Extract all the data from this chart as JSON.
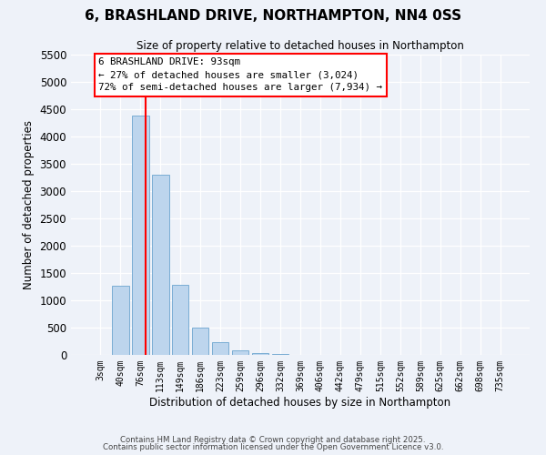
{
  "title": "6, BRASHLAND DRIVE, NORTHAMPTON, NN4 0SS",
  "subtitle": "Size of property relative to detached houses in Northampton",
  "xlabel": "Distribution of detached houses by size in Northampton",
  "ylabel": "Number of detached properties",
  "bar_labels": [
    "3sqm",
    "40sqm",
    "76sqm",
    "113sqm",
    "149sqm",
    "186sqm",
    "223sqm",
    "259sqm",
    "296sqm",
    "332sqm",
    "369sqm",
    "406sqm",
    "442sqm",
    "479sqm",
    "515sqm",
    "552sqm",
    "589sqm",
    "625sqm",
    "662sqm",
    "698sqm",
    "735sqm"
  ],
  "bar_values": [
    0,
    1270,
    4380,
    3300,
    1280,
    500,
    230,
    80,
    30,
    10,
    5,
    2,
    0,
    0,
    0,
    0,
    0,
    0,
    0,
    0,
    0
  ],
  "bar_color": "#bdd5ed",
  "bar_edge_color": "#7aadd4",
  "ylim": [
    0,
    5500
  ],
  "yticks": [
    0,
    500,
    1000,
    1500,
    2000,
    2500,
    3000,
    3500,
    4000,
    4500,
    5000,
    5500
  ],
  "annotation_title": "6 BRASHLAND DRIVE: 93sqm",
  "annotation_line1": "← 27% of detached houses are smaller (3,024)",
  "annotation_line2": "72% of semi-detached houses are larger (7,934) →",
  "vline_x_index": 2.27,
  "background_color": "#eef2f9",
  "footer1": "Contains HM Land Registry data © Crown copyright and database right 2025.",
  "footer2": "Contains public sector information licensed under the Open Government Licence v3.0."
}
